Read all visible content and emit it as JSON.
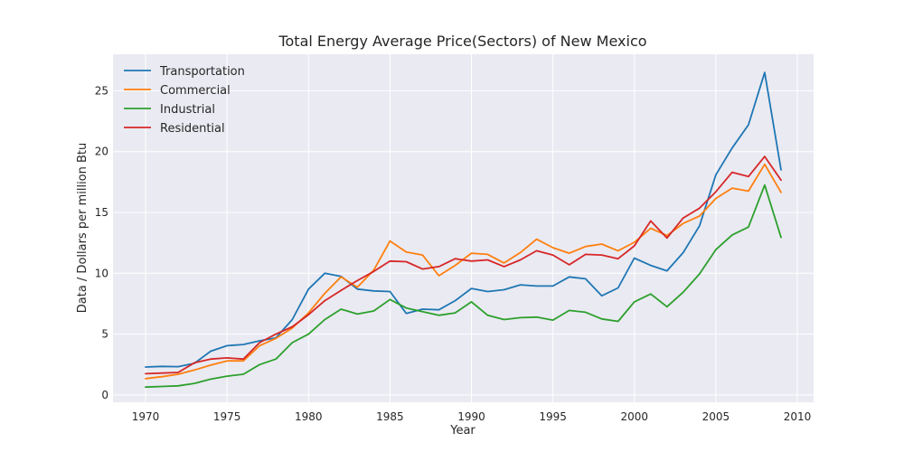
{
  "chart_data": {
    "type": "line",
    "title": "Total Energy Average Price(Sectors) of New Mexico",
    "xlabel": "Year",
    "ylabel": "Data / Dollars per million Btu",
    "xlim": [
      1968,
      2011
    ],
    "ylim": [
      -0.6,
      28
    ],
    "x_ticks": [
      1970,
      1975,
      1980,
      1985,
      1990,
      1995,
      2000,
      2005,
      2010
    ],
    "y_ticks": [
      0,
      5,
      10,
      15,
      20,
      25
    ],
    "grid": true,
    "legend_position": "top-left",
    "x": [
      1970,
      1971,
      1972,
      1973,
      1974,
      1975,
      1976,
      1977,
      1978,
      1979,
      1980,
      1981,
      1982,
      1983,
      1984,
      1985,
      1986,
      1987,
      1988,
      1989,
      1990,
      1991,
      1992,
      1993,
      1994,
      1995,
      1996,
      1997,
      1998,
      1999,
      2000,
      2001,
      2002,
      2003,
      2004,
      2005,
      2006,
      2007,
      2008,
      2009
    ],
    "series": [
      {
        "name": "Transportation",
        "color": "#1f77b4",
        "values": [
          2.3,
          2.35,
          2.33,
          2.6,
          3.6,
          4.05,
          4.15,
          4.45,
          4.7,
          6.2,
          8.7,
          10.0,
          9.75,
          8.7,
          8.55,
          8.5,
          6.7,
          7.05,
          7.0,
          7.75,
          8.75,
          8.5,
          8.65,
          9.05,
          8.95,
          8.95,
          9.7,
          9.55,
          8.15,
          8.8,
          11.25,
          10.65,
          10.2,
          11.7,
          13.9,
          18.1,
          20.3,
          22.2,
          26.5,
          18.5
        ]
      },
      {
        "name": "Commercial",
        "color": "#ff7f0e",
        "values": [
          1.35,
          1.5,
          1.7,
          2.05,
          2.45,
          2.8,
          2.8,
          4.05,
          4.65,
          5.5,
          6.75,
          8.35,
          9.7,
          8.85,
          10.25,
          12.65,
          11.75,
          11.5,
          9.8,
          10.65,
          11.65,
          11.55,
          10.85,
          11.7,
          12.8,
          12.1,
          11.65,
          12.2,
          12.4,
          11.85,
          12.55,
          13.7,
          13.1,
          14.1,
          14.7,
          16.15,
          17.0,
          16.75,
          18.95,
          16.65
        ]
      },
      {
        "name": "Industrial",
        "color": "#2ca02c",
        "values": [
          0.65,
          0.7,
          0.75,
          0.95,
          1.3,
          1.55,
          1.7,
          2.5,
          2.95,
          4.3,
          5.0,
          6.2,
          7.05,
          6.65,
          6.9,
          7.85,
          7.15,
          6.85,
          6.55,
          6.75,
          7.65,
          6.55,
          6.2,
          6.35,
          6.4,
          6.15,
          6.95,
          6.8,
          6.25,
          6.05,
          7.65,
          8.3,
          7.25,
          8.45,
          9.95,
          11.95,
          13.15,
          13.8,
          17.25,
          12.95
        ]
      },
      {
        "name": "Residential",
        "color": "#d62728",
        "values": [
          1.75,
          1.8,
          1.85,
          2.65,
          2.95,
          3.05,
          2.95,
          4.3,
          5.0,
          5.6,
          6.6,
          7.75,
          8.6,
          9.4,
          10.15,
          11.0,
          10.95,
          10.35,
          10.55,
          11.2,
          11.0,
          11.1,
          10.55,
          11.1,
          11.85,
          11.5,
          10.7,
          11.55,
          11.5,
          11.2,
          12.25,
          14.3,
          12.9,
          14.55,
          15.35,
          16.7,
          18.3,
          17.95,
          19.6,
          17.65
        ]
      }
    ]
  }
}
